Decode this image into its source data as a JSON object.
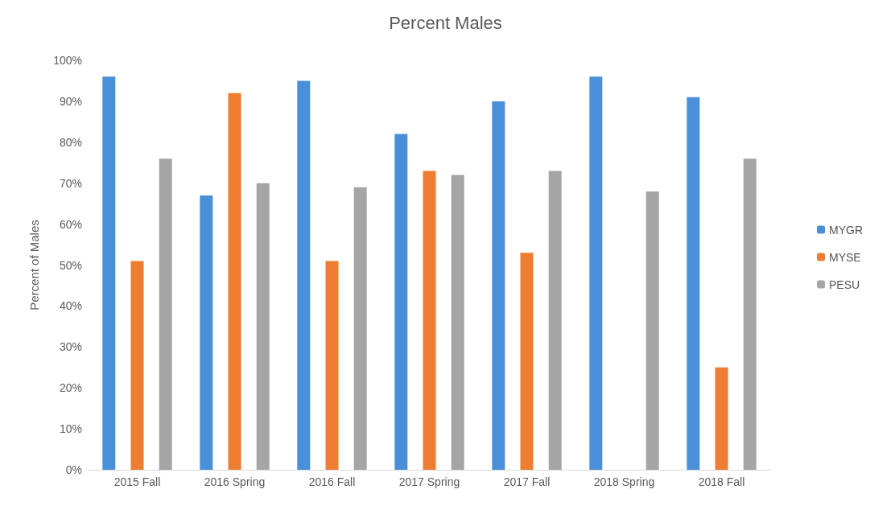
{
  "chart_data": {
    "type": "bar",
    "title": "Percent Males",
    "ylabel": "Percent of Males",
    "categories": [
      "2015 Fall",
      "2016 Spring",
      "2016 Fall",
      "2017 Spring",
      "2017 Fall",
      "2018 Spring",
      "2018 Fall"
    ],
    "series": [
      {
        "name": "MYGR",
        "color": "#4a90d9",
        "values": [
          96,
          67,
          95,
          82,
          90,
          96,
          91
        ]
      },
      {
        "name": "MYSE",
        "color": "#ed7d31",
        "values": [
          51,
          92,
          51,
          73,
          53,
          null,
          25
        ]
      },
      {
        "name": "PESU",
        "color": "#a5a5a5",
        "values": [
          76,
          70,
          69,
          72,
          73,
          68,
          76
        ]
      }
    ],
    "ylim": [
      0,
      100
    ],
    "yticks": [
      {
        "value": 0,
        "label": "0%"
      },
      {
        "value": 10,
        "label": "10%"
      },
      {
        "value": 20,
        "label": "20%"
      },
      {
        "value": 30,
        "label": "30%"
      },
      {
        "value": 40,
        "label": "40%"
      },
      {
        "value": 50,
        "label": "50%"
      },
      {
        "value": 60,
        "label": "60%"
      },
      {
        "value": 70,
        "label": "70%"
      },
      {
        "value": 80,
        "label": "80%"
      },
      {
        "value": 90,
        "label": "90%"
      },
      {
        "value": 100,
        "label": "100%"
      }
    ],
    "grid": false,
    "legend": "right"
  }
}
